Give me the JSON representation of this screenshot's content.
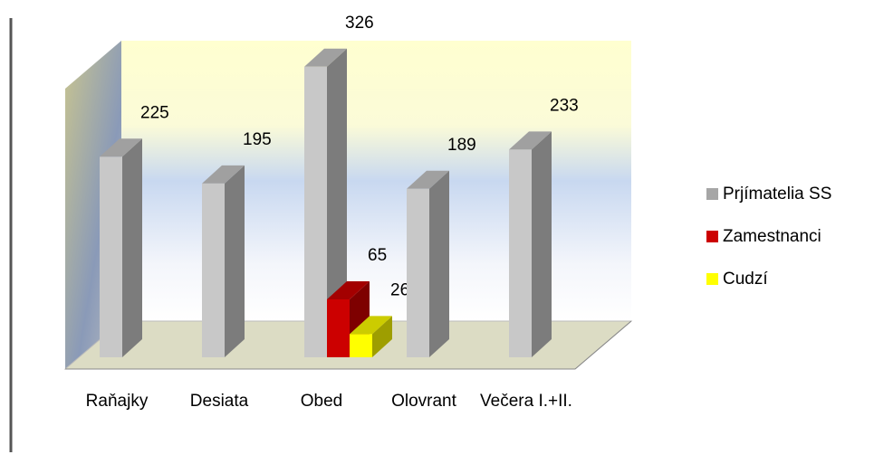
{
  "chart_data": {
    "type": "bar3d",
    "categories": [
      "Raňajky",
      "Desiata",
      "Obed",
      "Olovrant",
      "Večera I.+II."
    ],
    "series": [
      {
        "name": "Prjímatelia SS",
        "color": "#c8c8c8",
        "values": [
          225,
          195,
          326,
          189,
          233
        ]
      },
      {
        "name": "Zamestnanci",
        "color": "#cc0000",
        "values": [
          null,
          null,
          65,
          null,
          null
        ]
      },
      {
        "name": "Cudzí",
        "color": "#ffff00",
        "values": [
          null,
          null,
          26,
          null,
          null
        ]
      }
    ],
    "ylim": [
      0,
      340
    ],
    "legend": "right"
  }
}
